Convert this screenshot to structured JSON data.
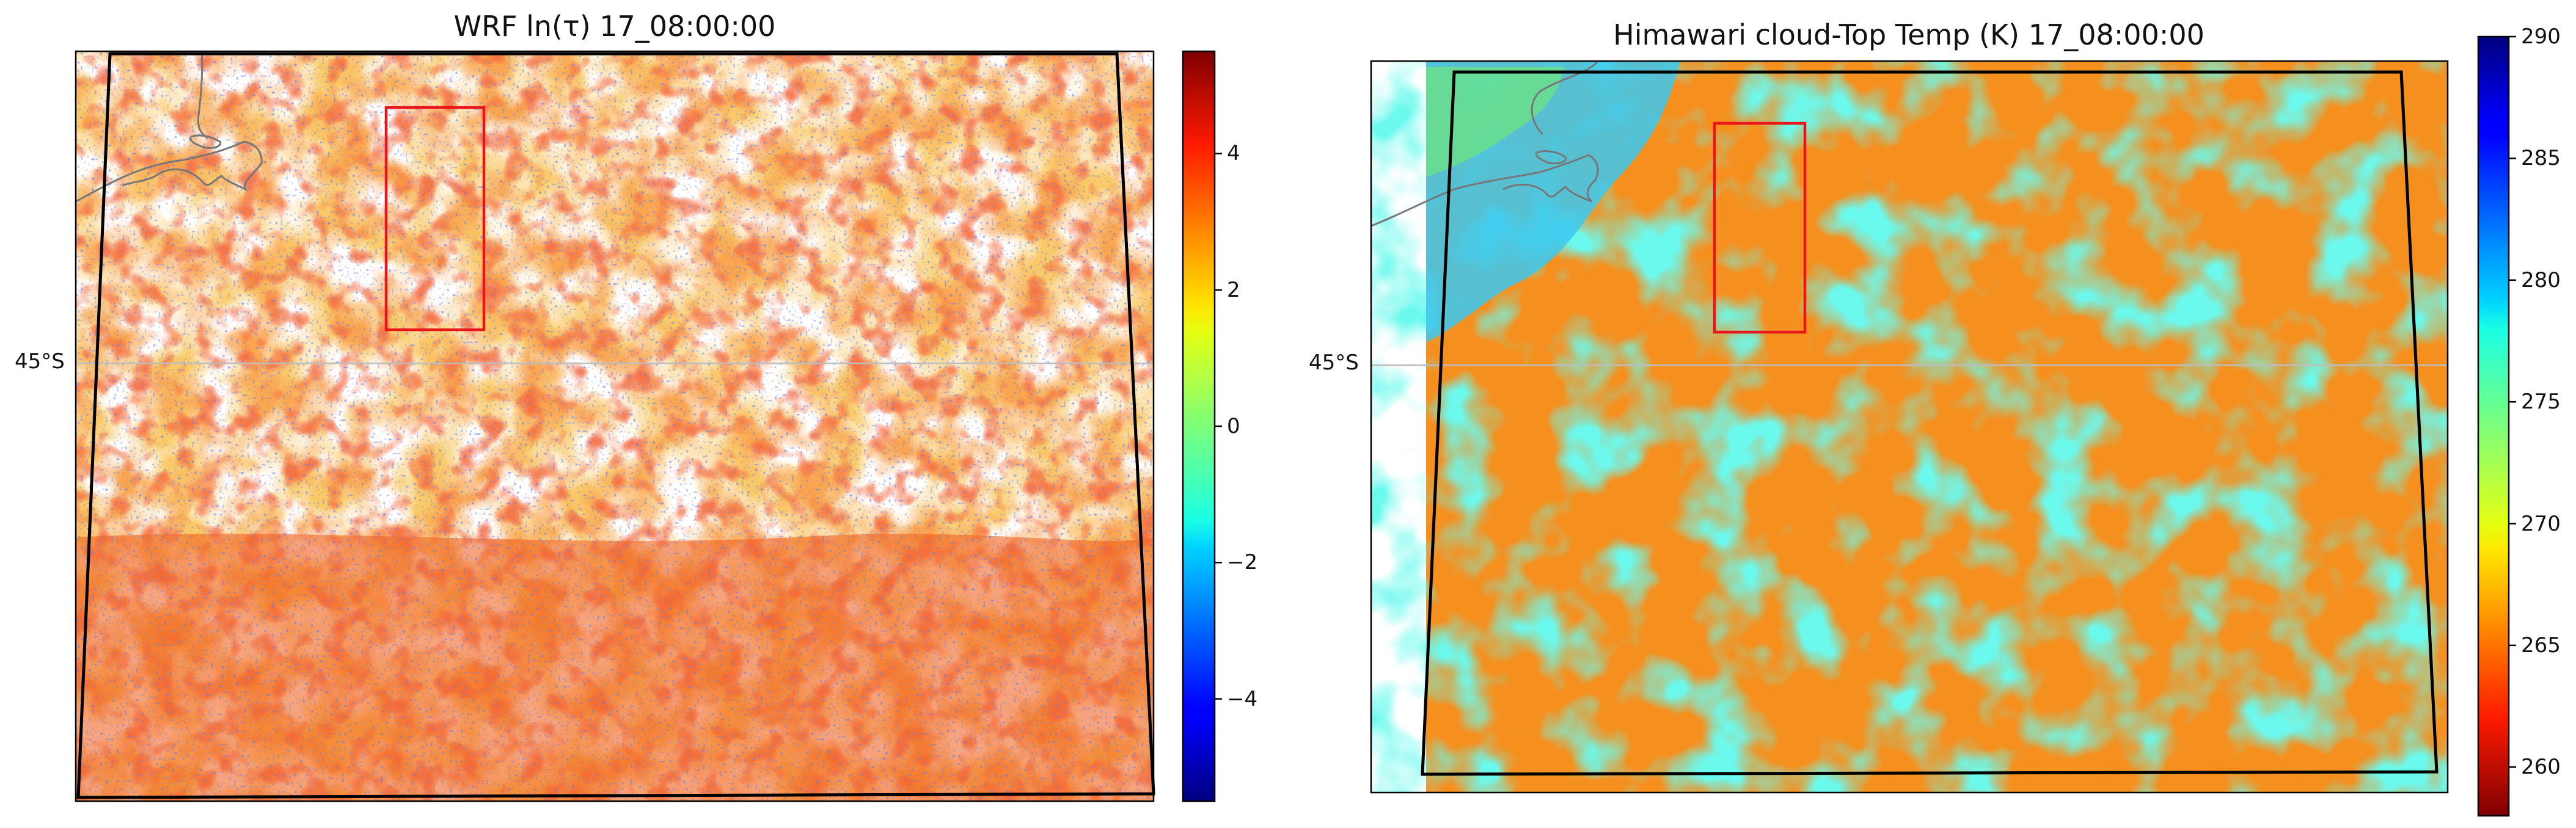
{
  "figure": {
    "panels": [
      {
        "title": "WRF ln(τ) 17_08:00:00",
        "lat_label": "45°S",
        "colorbar": {
          "colormap": "jet",
          "range": [
            -5.5,
            5.5
          ],
          "ticks": [
            -4,
            -2,
            0,
            2,
            4
          ],
          "tick_labels": [
            "−4",
            "−2",
            "0",
            "2",
            "4"
          ]
        },
        "background_color": "#ffffff",
        "box_color": "#e8161b",
        "domain_outline_color": "#000000",
        "coastline_color": "#777777"
      },
      {
        "title": "Himawari cloud-Top Temp (K) 17_08:00:00",
        "lat_label": "45°S",
        "colorbar": {
          "colormap": "jet_r",
          "range": [
            258,
            290
          ],
          "ticks": [
            260,
            265,
            270,
            275,
            280,
            285,
            290
          ],
          "tick_labels": [
            "260",
            "265",
            "270",
            "275",
            "280",
            "285",
            "290"
          ]
        },
        "box_color": "#e8161b",
        "domain_outline_color": "#000000",
        "coastline_color": "#777777"
      }
    ]
  },
  "chart_data": [
    {
      "type": "heatmap",
      "title": "WRF ln(τ) 17_08:00:00",
      "variable": "ln(τ)",
      "colormap": "jet",
      "value_range": [
        -5.5,
        5.5
      ],
      "colorbar_ticks": [
        -4,
        -2,
        0,
        2,
        4
      ],
      "y_tick_labels": [
        "45°S"
      ],
      "gridline": "45°S",
      "typical_cloud_value": 3.5,
      "clear_sky": "white (no data)"
    },
    {
      "type": "heatmap",
      "title": "Himawari cloud-Top Temp (K) 17_08:00:00",
      "variable": "cloud-top temperature (K)",
      "colormap": "jet_r",
      "value_range": [
        258,
        290
      ],
      "colorbar_ticks": [
        260,
        265,
        270,
        275,
        280,
        285,
        290
      ],
      "y_tick_labels": [
        "45°S"
      ],
      "gridline": "45°S",
      "dominant_cloud_temp": 266,
      "clear_sky_temp": 277
    }
  ]
}
